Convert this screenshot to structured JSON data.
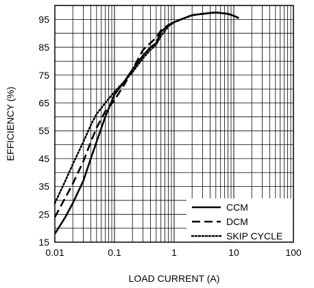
{
  "chart_data": {
    "type": "line",
    "title": "",
    "xlabel": "LOAD CURRENT (A)",
    "ylabel": "EFFICIENCY (%)",
    "x_scale": "log",
    "xlim": [
      0.01,
      100
    ],
    "ylim": [
      15,
      100
    ],
    "x_ticks": [
      {
        "value": 0.01,
        "label": "0.01"
      },
      {
        "value": 0.1,
        "label": "0.1"
      },
      {
        "value": 1,
        "label": "1"
      },
      {
        "value": 10,
        "label": "10"
      },
      {
        "value": 100,
        "label": "100"
      }
    ],
    "y_ticks": [
      {
        "value": 15,
        "label": "15"
      },
      {
        "value": 25,
        "label": "25"
      },
      {
        "value": 35,
        "label": "35"
      },
      {
        "value": 45,
        "label": "45"
      },
      {
        "value": 55,
        "label": "55"
      },
      {
        "value": 65,
        "label": "65"
      },
      {
        "value": 75,
        "label": "75"
      },
      {
        "value": 85,
        "label": "85"
      },
      {
        "value": 95,
        "label": "95"
      }
    ],
    "grid": true,
    "legend_position": "bottom-right",
    "series": [
      {
        "name": "CCM",
        "style": "solid",
        "x": [
          0.01,
          0.015,
          0.02,
          0.03,
          0.04,
          0.05,
          0.07,
          0.1,
          0.15,
          0.2,
          0.3,
          0.4,
          0.5,
          0.6,
          0.8,
          1,
          1.5,
          2,
          3,
          4,
          5,
          6,
          8,
          10,
          12
        ],
        "y": [
          18,
          24,
          29,
          37,
          45,
          51,
          60,
          68,
          73,
          77,
          82,
          85,
          86.5,
          90.5,
          93,
          94,
          95.5,
          96.5,
          97,
          97.3,
          97.5,
          97.3,
          97,
          96.3,
          95.5
        ]
      },
      {
        "name": "DCM",
        "style": "dashed",
        "x": [
          0.01,
          0.015,
          0.02,
          0.03,
          0.04,
          0.05,
          0.07,
          0.1,
          0.15,
          0.2,
          0.3,
          0.4,
          0.5,
          0.6,
          0.8,
          1,
          1.5,
          2,
          3,
          4,
          5,
          6,
          8,
          10,
          12
        ],
        "y": [
          24,
          31,
          36,
          44,
          51,
          56,
          62,
          66,
          72,
          77,
          84,
          86.5,
          88.5,
          91,
          93,
          94,
          95.5,
          96.5,
          97,
          97.3,
          97.5,
          97.3,
          97,
          96.3,
          95.5
        ]
      },
      {
        "name": "SKIP CYCLE",
        "style": "dotted",
        "x": [
          0.01,
          0.015,
          0.02,
          0.03,
          0.04,
          0.05,
          0.07,
          0.1,
          0.15,
          0.2,
          0.3,
          0.4,
          0.5,
          0.6,
          0.8,
          1,
          1.5,
          2,
          3,
          4,
          5,
          6,
          8,
          10,
          12
        ],
        "y": [
          29,
          37,
          43,
          51,
          57,
          61,
          65,
          69,
          73,
          76,
          81,
          84,
          86,
          89,
          92.5,
          94,
          95.5,
          96.5,
          97,
          97.3,
          97.5,
          97.3,
          97,
          96.3,
          95.5
        ]
      }
    ]
  }
}
